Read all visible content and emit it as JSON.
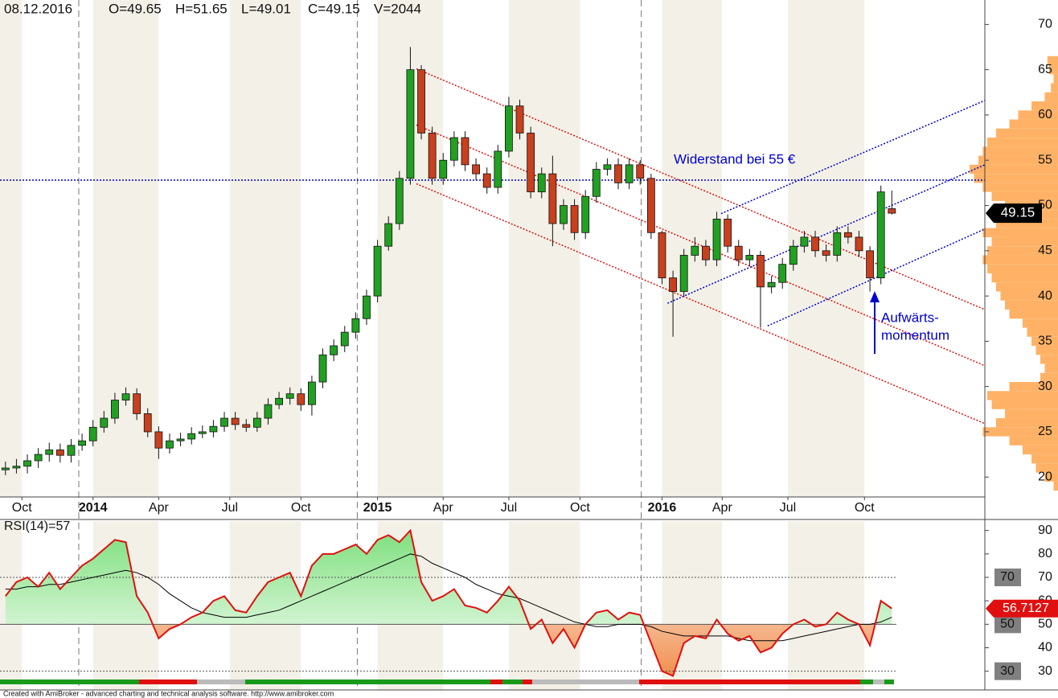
{
  "chart_data": [
    {
      "type": "candlestick",
      "date": "08.12.2016",
      "legend_items": [
        "O=49.65",
        "H=51.65",
        "L=49.01",
        "C=49.15",
        "V=2044"
      ],
      "annotations": [
        "Widerstand bei 55 €",
        "Aufwärts-",
        "momentum"
      ],
      "up_color": "#22a022",
      "down_color": "#c8401e",
      "x": [
        0,
        2,
        4,
        6,
        8,
        10,
        12,
        14,
        16,
        18,
        20,
        22,
        24,
        26,
        28,
        30,
        32,
        34,
        36,
        38,
        40,
        42,
        44,
        46,
        48,
        50,
        52,
        54,
        56,
        58,
        60,
        62,
        64,
        66,
        68,
        70,
        72,
        74,
        76,
        78,
        80,
        82,
        84,
        86,
        88,
        90,
        92,
        94,
        96,
        98,
        100,
        102,
        104,
        106,
        108,
        110,
        112,
        114,
        116,
        118,
        120,
        122,
        124,
        126,
        128,
        130,
        132,
        134,
        136,
        138,
        140,
        142,
        144,
        146,
        148,
        150,
        152,
        154,
        156,
        158,
        160,
        162
      ],
      "open": [
        20.8,
        21.0,
        21.2,
        21.8,
        22.5,
        23.0,
        22.4,
        23.5,
        24.0,
        25.5,
        26.5,
        28.5,
        29.2,
        27.0,
        25.0,
        23.2,
        24.0,
        24.2,
        24.8,
        25.0,
        25.6,
        26.5,
        25.8,
        25.5,
        26.5,
        28.0,
        28.7,
        29.2,
        28.0,
        30.5,
        33.5,
        34.5,
        36.0,
        37.5,
        40.0,
        45.5,
        48.0,
        53.0,
        65.0,
        58.0,
        53.0,
        55.0,
        57.5,
        54.5,
        53.5,
        52.0,
        56.0,
        61.0,
        58.0,
        51.5,
        53.5,
        48.0,
        50.0,
        47.0,
        51.0,
        54.0,
        54.5,
        52.5,
        54.5,
        53.0,
        47.0,
        42.0,
        40.5,
        44.5,
        45.5,
        44.0,
        48.5,
        45.5,
        44.0,
        44.5,
        41.0,
        41.5,
        43.5,
        45.5,
        46.5,
        45.0,
        44.5,
        47.0,
        46.5,
        45.0,
        42.0,
        49.65
      ],
      "high": [
        21.7,
        22.0,
        22.5,
        23.2,
        23.8,
        23.7,
        24.2,
        24.8,
        26.3,
        27.3,
        29.3,
        29.9,
        29.8,
        27.6,
        25.6,
        24.8,
        24.9,
        25.5,
        25.7,
        26.3,
        27.2,
        27.2,
        26.4,
        27.2,
        28.7,
        29.4,
        29.9,
        29.8,
        31.2,
        34.2,
        35.2,
        36.7,
        38.2,
        40.7,
        46.2,
        48.8,
        53.8,
        67.5,
        65.5,
        58.7,
        55.8,
        58.2,
        58.2,
        55.2,
        54.2,
        56.7,
        62.0,
        61.7,
        58.7,
        54.2,
        55.5,
        50.7,
        50.7,
        51.7,
        54.8,
        55.2,
        55.2,
        55.2,
        55.0,
        53.5,
        47.2,
        42.8,
        45.2,
        46.5,
        46.2,
        49.3,
        49.0,
        46.2,
        45.2,
        45.0,
        42.2,
        44.2,
        46.2,
        47.2,
        47.2,
        45.7,
        47.7,
        47.7,
        47.2,
        45.5,
        52.2,
        51.65
      ],
      "low": [
        20.2,
        20.4,
        20.4,
        21.0,
        21.7,
        21.6,
        21.6,
        22.9,
        23.4,
        24.9,
        25.9,
        27.9,
        26.3,
        24.4,
        22.0,
        22.6,
        23.4,
        23.6,
        24.3,
        24.4,
        25.0,
        25.2,
        25.0,
        25.0,
        25.8,
        27.5,
        28.0,
        27.3,
        26.8,
        29.8,
        32.8,
        33.8,
        35.3,
        36.8,
        39.3,
        45.0,
        47.3,
        52.3,
        57.3,
        52.3,
        52.3,
        54.3,
        53.8,
        52.8,
        51.3,
        51.3,
        55.3,
        57.3,
        50.8,
        50.8,
        45.5,
        47.3,
        46.2,
        46.3,
        50.3,
        53.3,
        51.8,
        51.8,
        52.3,
        46.3,
        41.3,
        35.5,
        40.0,
        43.8,
        43.3,
        43.3,
        44.8,
        43.3,
        43.3,
        36.5,
        40.3,
        40.8,
        42.8,
        44.8,
        44.3,
        43.8,
        43.8,
        45.8,
        44.3,
        40.5,
        41.3,
        49.01
      ],
      "close": [
        21.0,
        21.2,
        21.8,
        22.5,
        23.0,
        22.4,
        23.5,
        24.0,
        25.5,
        26.5,
        28.5,
        29.2,
        27.0,
        25.0,
        23.2,
        24.0,
        24.2,
        24.8,
        25.0,
        25.6,
        26.5,
        25.8,
        25.5,
        26.5,
        28.0,
        28.7,
        29.2,
        28.0,
        30.5,
        33.5,
        34.5,
        36.0,
        37.5,
        40.0,
        45.5,
        48.0,
        53.0,
        65.0,
        58.0,
        53.0,
        55.0,
        57.5,
        54.5,
        53.5,
        52.0,
        56.0,
        61.0,
        58.0,
        51.5,
        53.5,
        48.0,
        50.0,
        47.0,
        51.0,
        54.0,
        54.5,
        52.5,
        54.5,
        53.0,
        47.0,
        42.0,
        40.5,
        44.5,
        45.5,
        44.0,
        48.5,
        45.5,
        44.0,
        44.5,
        41.0,
        41.5,
        43.5,
        45.5,
        46.5,
        45.0,
        44.5,
        47.0,
        46.5,
        45.0,
        42.0,
        51.5,
        49.15
      ],
      "xlim": [
        -1,
        179
      ],
      "xticks": [
        {
          "value": 3,
          "label": "Oct"
        },
        {
          "value": 16,
          "label": "2014"
        },
        {
          "value": 28,
          "label": "Apr"
        },
        {
          "value": 41,
          "label": "Jul"
        },
        {
          "value": 54,
          "label": "Oct"
        },
        {
          "value": 68,
          "label": "2015"
        },
        {
          "value": 80,
          "label": "Apr"
        },
        {
          "value": 92,
          "label": "Jul"
        },
        {
          "value": 105,
          "label": "Oct"
        },
        {
          "value": 120,
          "label": "2016"
        },
        {
          "value": 131,
          "label": "Apr"
        },
        {
          "value": 143,
          "label": "Jul"
        },
        {
          "value": 157,
          "label": "Oct"
        }
      ],
      "year_lines": [
        13.4,
        64.3,
        116.2
      ],
      "ylim": [
        17.8,
        72.7
      ],
      "yticks": [
        20,
        25,
        30,
        35,
        40,
        45,
        50,
        55,
        60,
        65,
        70
      ],
      "hline": {
        "value": 52.8,
        "color": "#0000cc"
      },
      "trendlines": [
        {
          "color": "#e01010",
          "points": [
            [
              75.1,
              65.1
            ],
            [
              179,
              38.5
            ]
          ]
        },
        {
          "color": "#e01010",
          "points": [
            [
              75.1,
              58.9
            ],
            [
              179,
              32.3
            ]
          ]
        },
        {
          "color": "#e01010",
          "points": [
            [
              75.1,
              52.4
            ],
            [
              179,
              25.9
            ]
          ]
        },
        {
          "color": "#0000cc",
          "points": [
            [
              139.3,
              36.7
            ],
            [
              179,
              47.4
            ]
          ]
        },
        {
          "color": "#0000cc",
          "points": [
            [
              121,
              39.2
            ],
            [
              179,
              54.5
            ]
          ]
        },
        {
          "color": "#0000cc",
          "points": [
            [
              130.8,
              49.1
            ],
            [
              179,
              61.6
            ]
          ]
        }
      ],
      "volume_profile": {
        "color": "#ffb266",
        "prices": [
          19,
          20,
          21,
          22,
          23,
          24,
          25,
          26,
          27,
          28,
          29,
          30,
          31,
          32,
          33,
          34,
          35,
          36,
          37,
          38,
          39,
          40,
          41,
          42,
          43,
          44,
          45,
          46,
          47,
          48,
          49,
          50,
          51,
          52,
          53,
          54,
          55,
          56,
          57,
          58,
          59,
          60,
          61,
          62,
          63,
          64,
          65,
          66
        ],
        "values": [
          5,
          15,
          25,
          30,
          40,
          55,
          85,
          70,
          60,
          75,
          80,
          55,
          20,
          15,
          20,
          25,
          30,
          35,
          40,
          55,
          60,
          65,
          70,
          75,
          80,
          85,
          80,
          75,
          85,
          70,
          65,
          60,
          75,
          85,
          95,
          100,
          90,
          85,
          80,
          70,
          55,
          45,
          30,
          15,
          8,
          5,
          10,
          12
        ]
      }
    },
    {
      "type": "line",
      "title": "RSI(14)=57",
      "ylim": [
        22,
        94
      ],
      "yticks": [
        30,
        40,
        50,
        60,
        70,
        80,
        90
      ],
      "levels": [
        70,
        50,
        30
      ],
      "footer": "Created with AmiBroker - advanced charting and technical analysis software. http://www.amibroker.com",
      "series": [
        {
          "name": "RSI",
          "color": "#e01010",
          "values": [
            62,
            68,
            70,
            66,
            72,
            65,
            70,
            75,
            78,
            82,
            86,
            85,
            62,
            55,
            44,
            48,
            50,
            53,
            55,
            60,
            62,
            56,
            55,
            62,
            68,
            70,
            72,
            62,
            75,
            80,
            80,
            82,
            84,
            80,
            86,
            88,
            85,
            90,
            68,
            60,
            62,
            65,
            58,
            57,
            55,
            60,
            66,
            60,
            48,
            52,
            42,
            48,
            40,
            50,
            55,
            56,
            52,
            55,
            54,
            42,
            30,
            28,
            42,
            45,
            44,
            52,
            46,
            43,
            45,
            38,
            40,
            46,
            50,
            52,
            49,
            50,
            55,
            52,
            50,
            41,
            60,
            56.7127
          ]
        },
        {
          "name": "MA",
          "color": "#000000",
          "values": [
            65,
            65,
            66,
            66,
            67,
            67,
            68,
            69,
            70,
            71,
            72,
            73,
            72,
            70,
            67,
            63,
            60,
            57,
            55,
            54,
            53,
            53,
            53,
            54,
            55,
            56,
            58,
            60,
            62,
            64,
            66,
            68,
            70,
            72,
            74,
            76,
            78,
            80,
            79,
            76,
            74,
            72,
            70,
            67,
            65,
            63,
            62,
            61,
            59,
            57,
            55,
            53,
            51,
            50,
            49,
            49,
            50,
            50,
            50,
            49,
            47,
            46,
            45,
            45,
            45,
            45,
            45,
            44,
            43,
            43,
            43,
            43,
            44,
            45,
            46,
            47,
            48,
            49,
            50,
            50,
            51,
            53
          ]
        }
      ]
    }
  ]
}
